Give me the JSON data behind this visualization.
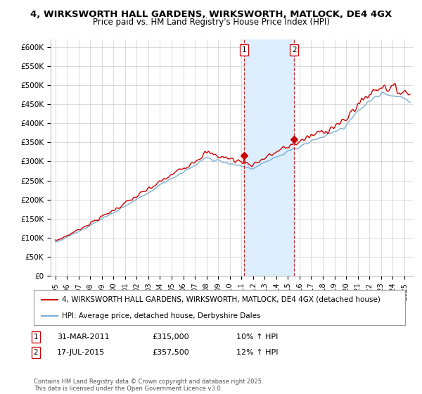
{
  "title1": "4, WIRKSWORTH HALL GARDENS, WIRKSWORTH, MATLOCK, DE4 4GX",
  "title2": "Price paid vs. HM Land Registry's House Price Index (HPI)",
  "ylim": [
    0,
    620000
  ],
  "yticks": [
    0,
    50000,
    100000,
    150000,
    200000,
    250000,
    300000,
    350000,
    400000,
    450000,
    500000,
    550000,
    600000
  ],
  "ytick_labels": [
    "£0",
    "£50K",
    "£100K",
    "£150K",
    "£200K",
    "£250K",
    "£300K",
    "£350K",
    "£400K",
    "£450K",
    "£500K",
    "£550K",
    "£600K"
  ],
  "hpi_color": "#7bafd4",
  "price_color": "#cc0000",
  "shade_color": "#ddeeff",
  "dashed_color": "#cc0000",
  "annotation1": {
    "label": "1",
    "date": "31-MAR-2011",
    "price": "£315,000",
    "pct": "10% ↑ HPI",
    "x": 2011.25
  },
  "annotation2": {
    "label": "2",
    "date": "17-JUL-2015",
    "price": "£357,500",
    "pct": "12% ↑ HPI",
    "x": 2015.54
  },
  "legend1": "4, WIRKSWORTH HALL GARDENS, WIRKSWORTH, MATLOCK, DE4 4GX (detached house)",
  "legend2": "HPI: Average price, detached house, Derbyshire Dales",
  "footnote": "Contains HM Land Registry data © Crown copyright and database right 2025.\nThis data is licensed under the Open Government Licence v3.0.",
  "background_color": "#ffffff",
  "grid_color": "#cccccc",
  "xlim_left": 1994.6,
  "xlim_right": 2025.8,
  "sale1_price": 315000,
  "sale2_price": 357500
}
